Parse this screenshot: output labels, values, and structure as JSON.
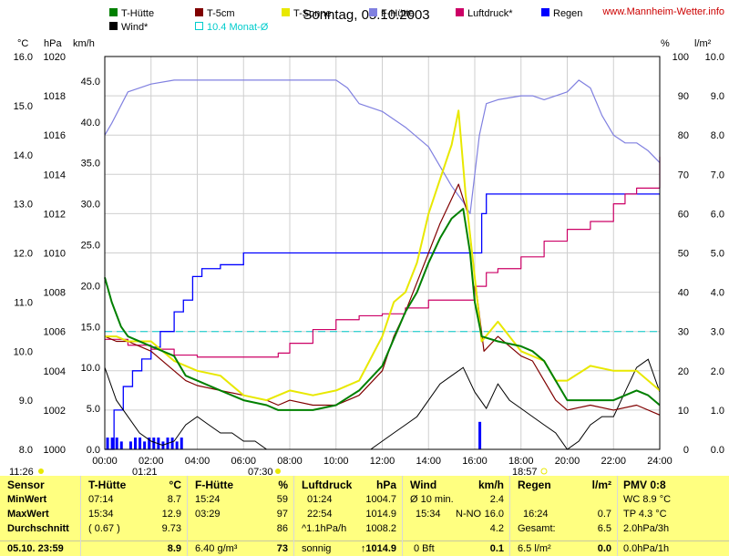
{
  "title": "Sonntag, 05.10.2003",
  "site": "www.Mannheim-Wetter.info",
  "axis_units": {
    "left1": "°C",
    "left2": "hPa",
    "left3": "km/h",
    "right1": "%",
    "right2": "l/m²"
  },
  "legend": [
    {
      "label": "T-Hütte",
      "color": "#008000"
    },
    {
      "label": "T-5cm",
      "color": "#800000"
    },
    {
      "label": "T-Sonne",
      "color": "#e8e800"
    },
    {
      "label": "F-Hütte",
      "color": "#8080e0"
    },
    {
      "label": "Luftdruck*",
      "color": "#cc0066"
    },
    {
      "label": "Regen",
      "color": "#0000ff"
    },
    {
      "label": "Wind*",
      "color": "#000000"
    },
    {
      "label": "10.4 Monat-Ø",
      "color": "#00cccc"
    }
  ],
  "sun": {
    "rise": "07:30",
    "set": "18:57",
    "left_mark": "11:26",
    "moon": "01:21"
  },
  "chart_data": {
    "type": "line",
    "x_range": [
      0,
      24
    ],
    "x_ticks": [
      "00:00",
      "02:00",
      "04:00",
      "06:00",
      "08:00",
      "10:00",
      "12:00",
      "14:00",
      "16:00",
      "18:00",
      "20:00",
      "22:00",
      "24:00"
    ],
    "y_temp_ticks": [
      "8.0",
      "9.0",
      "10.0",
      "11.0",
      "12.0",
      "13.0",
      "14.0",
      "15.0",
      "16.0"
    ],
    "y_temp_range": [
      8,
      16
    ],
    "y_press_ticks": [
      "1000",
      "1002",
      "1004",
      "1006",
      "1008",
      "1010",
      "1012",
      "1014",
      "1016",
      "1018",
      "1020"
    ],
    "y_press_range": [
      1000,
      1020
    ],
    "y_wind_ticks": [
      "0.0",
      "5.0",
      "10.0",
      "15.0",
      "20.0",
      "25.0",
      "30.0",
      "35.0",
      "40.0",
      "45.0"
    ],
    "y_wind_range": [
      0,
      48
    ],
    "y_pct_ticks": [
      "0",
      "10",
      "20",
      "30",
      "40",
      "50",
      "60",
      "70",
      "80",
      "90",
      "100"
    ],
    "y_pct_range": [
      0,
      100
    ],
    "y_rain_ticks": [
      "0.0",
      "1.0",
      "2.0",
      "3.0",
      "4.0",
      "5.0",
      "6.0",
      "7.0",
      "8.0",
      "9.0",
      "10.0"
    ],
    "y_rain_range": [
      0,
      10
    ],
    "series": [
      {
        "name": "T-Hütte",
        "axis": "temp",
        "color": "#008000",
        "x": [
          0,
          0.3,
          0.7,
          1,
          2,
          3,
          3.5,
          4,
          5,
          6,
          7,
          7.5,
          8,
          9,
          10,
          11,
          12,
          13,
          13.5,
          14,
          14.5,
          15,
          15.5,
          15.8,
          16,
          16.3,
          17,
          18,
          18.5,
          19,
          19.5,
          20,
          21,
          22,
          23,
          23.5,
          24
        ],
        "y": [
          11.5,
          11.0,
          10.5,
          10.3,
          10.1,
          9.9,
          9.5,
          9.4,
          9.2,
          9.0,
          8.9,
          8.8,
          8.8,
          8.8,
          8.9,
          9.2,
          9.7,
          10.8,
          11.2,
          11.8,
          12.3,
          12.7,
          12.9,
          12.0,
          11.0,
          10.3,
          10.2,
          10.1,
          10.0,
          9.8,
          9.4,
          9.0,
          9.0,
          9.0,
          9.2,
          9.1,
          8.9
        ]
      },
      {
        "name": "T-5cm",
        "axis": "temp",
        "color": "#800000",
        "x": [
          0,
          0.5,
          1,
          2,
          3,
          3.5,
          4,
          5,
          6,
          7,
          7.5,
          8,
          9,
          10,
          11,
          12,
          12.5,
          13,
          13.5,
          14,
          14.5,
          15,
          15.3,
          15.7,
          16,
          16.4,
          17,
          18,
          18.5,
          19,
          19.5,
          20,
          21,
          22,
          23,
          24
        ],
        "y": [
          10.3,
          10.2,
          10.2,
          10.0,
          9.6,
          9.4,
          9.3,
          9.2,
          9.1,
          9.0,
          8.9,
          9.0,
          8.9,
          8.9,
          9.1,
          9.6,
          10.3,
          10.8,
          11.4,
          12.0,
          12.6,
          13.1,
          13.4,
          12.8,
          11.5,
          10.0,
          10.3,
          9.9,
          9.8,
          9.4,
          9.0,
          8.8,
          8.9,
          8.8,
          8.9,
          8.7
        ]
      },
      {
        "name": "T-Sonne",
        "axis": "temp",
        "color": "#e8e800",
        "x": [
          0,
          0.5,
          1,
          2,
          3,
          3.5,
          4,
          5,
          6,
          7,
          8,
          9,
          10,
          11,
          12,
          12.5,
          13,
          13.5,
          14,
          14.5,
          15,
          15.3,
          15.6,
          16,
          16.3,
          17,
          18,
          19,
          19.5,
          20,
          21,
          22,
          23,
          24
        ],
        "y": [
          10.3,
          10.3,
          10.2,
          10.2,
          9.8,
          9.7,
          9.6,
          9.5,
          9.1,
          9.0,
          9.2,
          9.1,
          9.2,
          9.4,
          10.3,
          11.0,
          11.2,
          11.8,
          12.8,
          13.5,
          14.2,
          14.9,
          13.2,
          11.5,
          10.2,
          10.6,
          10.0,
          9.8,
          9.4,
          9.4,
          9.7,
          9.6,
          9.6,
          9.2
        ]
      },
      {
        "name": "F-Hütte",
        "axis": "pct",
        "color": "#8080e0",
        "x": [
          0,
          0.3,
          1,
          2,
          3,
          4,
          5,
          6,
          7,
          8,
          9,
          10,
          10.5,
          11,
          12,
          13,
          14,
          15,
          15.5,
          15.8,
          16,
          16.2,
          16.5,
          17,
          18,
          18.5,
          19,
          20,
          20.5,
          21,
          21.5,
          22,
          22.5,
          23,
          23.5,
          24
        ],
        "y": [
          80,
          83,
          91,
          93,
          94,
          94,
          94,
          94,
          94,
          94,
          94,
          94,
          92,
          88,
          86,
          82,
          77,
          67,
          63,
          60,
          70,
          80,
          88,
          89,
          90,
          90,
          89,
          91,
          94,
          92,
          85,
          80,
          78,
          78,
          76,
          73
        ]
      },
      {
        "name": "Luftdruck*",
        "axis": "press",
        "color": "#cc0066",
        "x": [
          0,
          1,
          2,
          3,
          4,
          5,
          6,
          7,
          7.5,
          8,
          9,
          10,
          11,
          12,
          13,
          14,
          15,
          16,
          16.5,
          17,
          18,
          19,
          20,
          21,
          22,
          22.5,
          23,
          24
        ],
        "y": [
          1005.6,
          1005.3,
          1005.1,
          1004.8,
          1004.7,
          1004.7,
          1004.7,
          1004.7,
          1004.9,
          1005.4,
          1006.1,
          1006.6,
          1006.8,
          1006.9,
          1007.2,
          1007.6,
          1007.6,
          1008.3,
          1009.0,
          1009.2,
          1009.8,
          1010.6,
          1011.2,
          1011.6,
          1012.5,
          1013.0,
          1013.3,
          1014.9
        ]
      }
    ],
    "wind": {
      "name": "Wind*",
      "axis": "wind",
      "color": "#000000",
      "x": [
        0,
        0.5,
        1,
        1.5,
        2,
        2.5,
        3,
        3.5,
        4,
        4.5,
        5,
        5.5,
        6,
        6.5,
        7,
        7.5,
        8,
        8.5,
        9,
        9.5,
        10,
        10.5,
        11,
        11.5,
        12,
        12.5,
        13,
        13.5,
        14,
        14.5,
        15,
        15.5,
        16,
        16.5,
        17,
        17.5,
        18,
        18.5,
        19,
        19.5,
        20,
        20.5,
        21,
        21.5,
        22,
        22.5,
        23,
        23.5,
        24
      ],
      "y": [
        10,
        6,
        4,
        2,
        1,
        0.5,
        1,
        3,
        4,
        3,
        2,
        2,
        1,
        1,
        0,
        0,
        0,
        0,
        0,
        0,
        0,
        0,
        0,
        0,
        1,
        2,
        3,
        4,
        6,
        8,
        9,
        10,
        7,
        5,
        8,
        6,
        5,
        4,
        3,
        2,
        0,
        1,
        3,
        4,
        4,
        7,
        10,
        11,
        7
      ]
    },
    "rain_sum": {
      "name": "Regen",
      "axis": "rain",
      "color": "#0000ff",
      "x": [
        0,
        0.4,
        0.8,
        1.2,
        1.6,
        2.0,
        2.4,
        3.0,
        3.4,
        3.8,
        4.2,
        5.0,
        5.5,
        6.0,
        7.0,
        8.0,
        9.0,
        10.0,
        12.0,
        14.0,
        15.0,
        15.8,
        16.0,
        16.3,
        16.5,
        18.0,
        20.0,
        22.0,
        24.0
      ],
      "y": [
        0,
        1.0,
        1.6,
        2.0,
        2.3,
        2.6,
        3.0,
        3.5,
        3.8,
        4.4,
        4.6,
        4.7,
        4.7,
        5.0,
        5.0,
        5.0,
        5.0,
        5.0,
        5.0,
        5.0,
        5.0,
        5.0,
        5.0,
        6.0,
        6.5,
        6.5,
        6.5,
        6.5,
        6.5
      ]
    },
    "rain_bars": {
      "name": "Regen",
      "color": "#0000ff",
      "x": [
        0.1,
        0.3,
        0.5,
        0.7,
        1.1,
        1.3,
        1.5,
        1.7,
        1.9,
        2.1,
        2.3,
        2.5,
        2.7,
        2.9,
        3.1,
        3.3,
        16.2
      ],
      "y": [
        0.3,
        0.3,
        0.3,
        0.2,
        0.2,
        0.3,
        0.3,
        0.2,
        0.3,
        0.3,
        0.3,
        0.2,
        0.3,
        0.3,
        0.2,
        0.3,
        0.7
      ]
    },
    "month_avg": {
      "name": "10.4 Monat-Ø",
      "axis": "temp",
      "value": 10.4,
      "color": "#00cccc"
    }
  },
  "table": {
    "sensor": {
      "title": "Sensor",
      "rows": [
        "MinWert",
        "MaxWert",
        "Durchschnitt",
        "05.10. 23:59"
      ]
    },
    "t_huette": {
      "title": "T-Hütte",
      "unit": "°C",
      "rows": [
        [
          "07:14",
          "8.7"
        ],
        [
          "15:34",
          "12.9"
        ],
        [
          "( 0.67 )",
          "9.73"
        ],
        [
          "",
          "8.9"
        ]
      ]
    },
    "f_huette": {
      "title": "F-Hütte",
      "unit": "%",
      "rows": [
        [
          "15:24",
          "59"
        ],
        [
          "03:29",
          "97"
        ],
        [
          "",
          "86"
        ],
        [
          "6.40 g/m³",
          "73"
        ]
      ]
    },
    "luftdruck": {
      "title": "Luftdruck",
      "unit": "hPa",
      "rows": [
        [
          "01:24",
          "1004.7"
        ],
        [
          "22:54",
          "1014.9"
        ],
        [
          "^1.1hPa/h",
          "1008.2"
        ],
        [
          "sonnig",
          "↑1014.9"
        ]
      ]
    },
    "wind": {
      "title": "Wind",
      "unit": "km/h",
      "rows": [
        [
          "Ø 10 min.",
          "",
          "2.4"
        ],
        [
          "15:34",
          "N-NO",
          "16.0"
        ],
        [
          "",
          "",
          "4.2"
        ],
        [
          "0 Bft",
          "",
          "0.1"
        ]
      ]
    },
    "regen": {
      "title": "Regen",
      "unit": "l/m²",
      "rows": [
        [
          "",
          ""
        ],
        [
          "16:24",
          "0.7"
        ],
        [
          "Gesamt:",
          "6.5"
        ],
        [
          "6.5 l/m²",
          "0.0"
        ]
      ]
    },
    "pmv": {
      "title": "PMV 0:8",
      "rows": [
        "WC 8.9 °C",
        "TP 4.3 °C",
        "2.0hPa/3h",
        "0.0hPa/1h"
      ]
    }
  }
}
